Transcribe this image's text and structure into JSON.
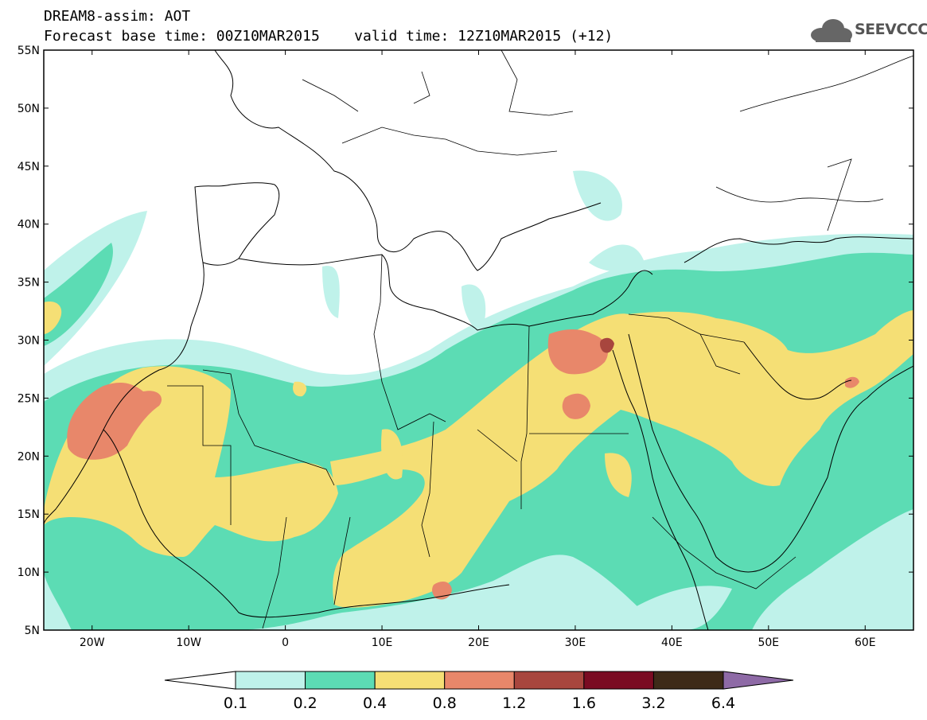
{
  "header": {
    "line1": "DREAM8-assim: AOT",
    "base_time": "Forecast base time: 00Z10MAR2015",
    "valid_time": "valid time: 12Z10MAR2015 (+12)"
  },
  "logo": {
    "text": "SEEVCCC",
    "icon": "cloud-icon"
  },
  "map": {
    "lon_range": [
      -25,
      65
    ],
    "lat_range": [
      5,
      55
    ],
    "lat_ticks": [
      "5N",
      "10N",
      "15N",
      "20N",
      "25N",
      "30N",
      "35N",
      "40N",
      "45N",
      "50N",
      "55N"
    ],
    "lon_ticks": [
      "20W",
      "10W",
      "0",
      "10E",
      "20E",
      "30E",
      "40E",
      "50E",
      "60E"
    ],
    "field": "Aerosol optical thickness"
  },
  "colorbar": {
    "levels": [
      "0.1",
      "0.2",
      "0.4",
      "0.8",
      "1.2",
      "1.6",
      "3.2",
      "6.4"
    ],
    "colors": [
      "#ffffff",
      "#bff2ea",
      "#5cdcb4",
      "#f5df75",
      "#e8876a",
      "#a8463e",
      "#7a0b22",
      "#3d2a18",
      "#8e6aa6"
    ]
  }
}
